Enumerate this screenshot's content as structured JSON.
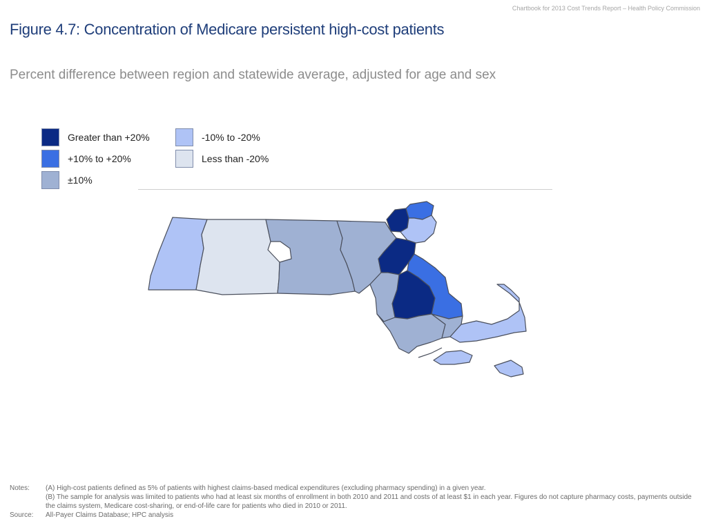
{
  "header_note": "Chartbook for 2013 Cost Trends Report – Health Policy Commission",
  "title": "Figure 4.7: Concentration of Medicare persistent high-cost patients",
  "subtitle": "Percent difference between region and statewide average, adjusted for age and sex",
  "legend": [
    {
      "label": "Greater than +20%",
      "color": "#0b2a84"
    },
    {
      "label": "+10% to +20%",
      "color": "#3a6fe3"
    },
    {
      "label": "±10%",
      "color": "#9fb1d3"
    },
    {
      "label": "-10% to -20%",
      "color": "#afc3f6"
    },
    {
      "label": "Less than -20%",
      "color": "#dde4ef"
    }
  ],
  "map": {
    "border_color": "#4a4f5c",
    "regions": [
      {
        "category": "-10% to -20%"
      },
      {
        "category": "Less than -20%"
      },
      {
        "category": "±10%"
      },
      {
        "category": "±10%"
      },
      {
        "category": "Greater than +20%"
      },
      {
        "category": "+10% to +20%"
      },
      {
        "category": "-10% to -20%"
      },
      {
        "category": "Greater than +20%"
      },
      {
        "category": "Greater than +20%"
      },
      {
        "category": "+10% to +20%"
      },
      {
        "category": "±10%"
      },
      {
        "category": "±10%"
      },
      {
        "category": "±10%"
      },
      {
        "category": "-10% to -20%"
      },
      {
        "category": "-10% to -20%"
      },
      {
        "category": "-10% to -20%"
      }
    ]
  },
  "notes": {
    "notes_key": "Notes:",
    "note_a": "(A) High-cost patients defined as 5% of patients with highest claims-based medical expenditures (excluding pharmacy spending) in a given year.",
    "note_b": "(B) The sample for analysis was limited to patients who had at least six months of enrollment in both 2010 and 2011 and costs of at least $1 in each year. Figures do not capture pharmacy costs, payments outside the claims system, Medicare cost-sharing, or end-of-life care for patients who died in 2010 or 2011.",
    "source_key": "Source:",
    "source": "All-Payer Claims Database; HPC analysis"
  }
}
